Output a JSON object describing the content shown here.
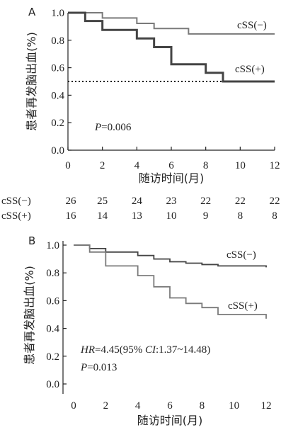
{
  "chart_data": [
    {
      "type": "line",
      "panel_label": "A",
      "xlabel": "随访时间(月)",
      "ylabel": "患者再发脑出血(%)",
      "xlim": [
        0,
        12
      ],
      "ylim": [
        0,
        1
      ],
      "xticks": [
        "0",
        "2",
        "4",
        "6",
        "8",
        "10",
        "12"
      ],
      "yticks": [
        "0.0",
        "0.2",
        "0.4",
        "0.6",
        "0.8",
        "1.0"
      ],
      "grid": false,
      "series": [
        {
          "name": "cSS(−)",
          "color": "#7a7a7a",
          "x": [
            0,
            2,
            4,
            5,
            7,
            12
          ],
          "y": [
            1.0,
            0.962,
            0.923,
            0.885,
            0.846,
            0.846
          ]
        },
        {
          "name": "cSS(+)",
          "color": "#444444",
          "x": [
            0,
            1,
            2,
            4,
            5,
            6,
            8,
            9,
            12
          ],
          "y": [
            1.0,
            0.94,
            0.875,
            0.813,
            0.75,
            0.625,
            0.563,
            0.5,
            0.5
          ]
        }
      ],
      "reference_line": {
        "y": 0.5,
        "style": "dotted"
      },
      "annotation": {
        "p_label": "P",
        "p_value": "=0.006"
      },
      "risk_table": {
        "rows": [
          {
            "label": "cSS(−)",
            "values": [
              "26",
              "25",
              "24",
              "23",
              "22",
              "22",
              "22"
            ]
          },
          {
            "label": "cSS(+)",
            "values": [
              "16",
              "14",
              "13",
              "10",
              "9",
              "8",
              "8"
            ]
          }
        ]
      }
    },
    {
      "type": "line",
      "panel_label": "B",
      "xlabel": "随访时间(月)",
      "ylabel": "患者再发脑出血(%)",
      "xlim": [
        0,
        12
      ],
      "ylim": [
        0,
        1
      ],
      "xticks": [
        "0",
        "2",
        "4",
        "6",
        "8",
        "10",
        "12"
      ],
      "yticks": [
        "0.0",
        "0.2",
        "0.4",
        "0.6",
        "0.8",
        "1.0"
      ],
      "grid": false,
      "series": [
        {
          "name": "cSS(−)",
          "color": "#444444",
          "x": [
            0,
            1,
            2,
            4,
            5,
            6,
            7,
            8,
            9,
            12
          ],
          "y": [
            1.0,
            0.975,
            0.95,
            0.925,
            0.9,
            0.88,
            0.87,
            0.86,
            0.85,
            0.84
          ]
        },
        {
          "name": "cSS(+)",
          "color": "#7a7a7a",
          "x": [
            0,
            1,
            2,
            4,
            5,
            6,
            7,
            8,
            9,
            12
          ],
          "y": [
            1.0,
            0.95,
            0.85,
            0.78,
            0.7,
            0.62,
            0.58,
            0.55,
            0.5,
            0.47
          ]
        }
      ],
      "annotation": {
        "hr_label": "HR",
        "hr_value": "=4.45(95% ",
        "ci_label": "CI",
        "ci_value": ":1.37~14.48)",
        "p_label": "P",
        "p_value": "=0.013"
      }
    }
  ]
}
